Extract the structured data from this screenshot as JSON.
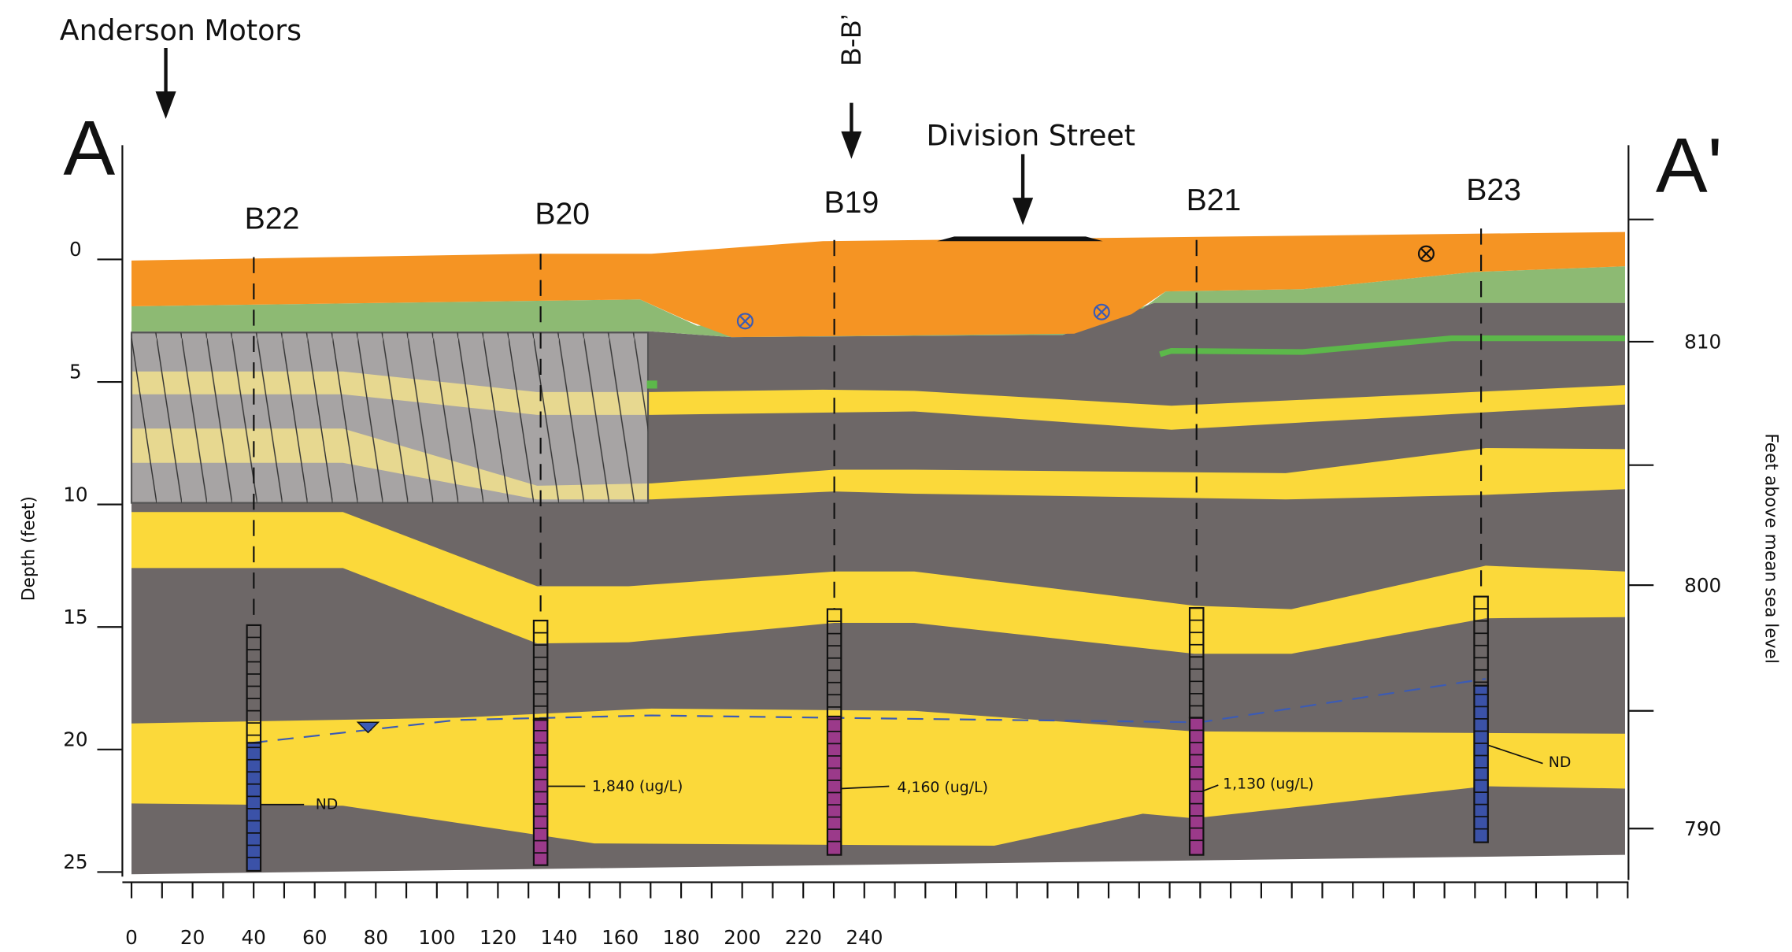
{
  "labels": {
    "location": "Anderson Motors",
    "cross_section": "B-B’",
    "street": "Division Street",
    "start": "A",
    "end": "A'"
  },
  "x_axis": {
    "ticks": [
      "0",
      "20",
      "40",
      "60",
      "80",
      "100",
      "120",
      "140",
      "160",
      "180",
      "200",
      "220",
      "240"
    ]
  },
  "depth_axis": {
    "label": "Depth (feet)",
    "ticks": [
      "0",
      "5",
      "10",
      "15",
      "20",
      "25"
    ]
  },
  "elevation_axis": {
    "label": "Feet above mean sea level",
    "ticks": [
      "810",
      "800",
      "790"
    ]
  },
  "borings": [
    {
      "name": "B22",
      "result": "ND"
    },
    {
      "name": "B20",
      "result": "1,840 (ug/L)"
    },
    {
      "name": "B19",
      "result": "4,160 (ug/L)"
    },
    {
      "name": "B21",
      "result": "1,130 (ug/L)"
    },
    {
      "name": "B23",
      "result": "ND"
    }
  ]
}
